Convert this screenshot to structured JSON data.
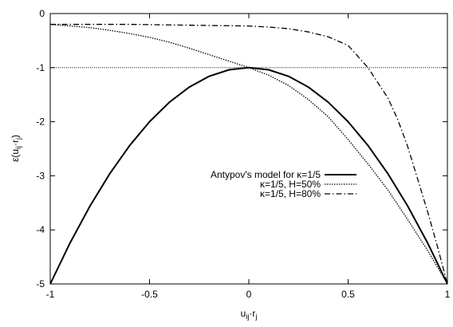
{
  "chart_data": {
    "type": "line",
    "xlim": [
      -1,
      1
    ],
    "ylim": [
      -5,
      0
    ],
    "xticks": [
      -1,
      -0.5,
      0,
      0.5,
      1
    ],
    "xtick_labels": [
      "-1",
      "-0.5",
      "0",
      "0.5",
      "1"
    ],
    "yticks": [
      0,
      -1,
      -2,
      -3,
      -4,
      -5
    ],
    "ytick_labels": [
      "0",
      "-1",
      "-2",
      "-3",
      "-4",
      "-5"
    ],
    "xlabel": {
      "main": "u",
      "sub": "ij",
      "dot": "·",
      "main2": "r",
      "sub2": "j"
    },
    "ylabel": {
      "pre": "ε(u",
      "sub": "ij",
      "mid": "·r",
      "sub2": "j",
      "post": ")"
    },
    "reference_line": {
      "y": -1,
      "style": "dotted"
    },
    "grid": false,
    "legend_position": "center-right",
    "series": [
      {
        "name": "Antypov's model for κ=1/5",
        "style": "solid",
        "x": [
          -1,
          -0.9,
          -0.8,
          -0.7,
          -0.6,
          -0.5,
          -0.4,
          -0.3,
          -0.2,
          -0.1,
          0,
          0.1,
          0.2,
          0.3,
          0.4,
          0.5,
          0.6,
          0.7,
          0.8,
          0.9,
          1
        ],
        "y": [
          -5,
          -4.24,
          -3.56,
          -2.96,
          -2.44,
          -2.0,
          -1.64,
          -1.36,
          -1.16,
          -1.04,
          -1.0,
          -1.04,
          -1.16,
          -1.36,
          -1.64,
          -2.0,
          -2.44,
          -2.96,
          -3.56,
          -4.24,
          -5
        ]
      },
      {
        "name": "κ=1/5, H=50%",
        "style": "dotted",
        "x": [
          -1,
          -0.9,
          -0.8,
          -0.7,
          -0.6,
          -0.5,
          -0.4,
          -0.3,
          -0.2,
          -0.1,
          0,
          0.1,
          0.2,
          0.3,
          0.4,
          0.5,
          0.6,
          0.7,
          0.8,
          0.9,
          1
        ],
        "y": [
          -0.2,
          -0.23,
          -0.26,
          -0.31,
          -0.37,
          -0.44,
          -0.53,
          -0.64,
          -0.76,
          -0.88,
          -1.0,
          -1.14,
          -1.33,
          -1.59,
          -1.91,
          -2.33,
          -2.78,
          -3.26,
          -3.81,
          -4.38,
          -5.0
        ]
      },
      {
        "name": "κ=1/5, H=80%",
        "style": "dashdot",
        "x": [
          -1,
          -0.8,
          -0.6,
          -0.4,
          -0.2,
          0,
          0.1,
          0.2,
          0.3,
          0.4,
          0.5,
          0.6,
          0.7,
          0.75,
          0.8,
          0.85,
          0.9,
          0.95,
          1
        ],
        "y": [
          -0.2,
          -0.2,
          -0.2,
          -0.21,
          -0.22,
          -0.23,
          -0.25,
          -0.28,
          -0.34,
          -0.43,
          -0.59,
          -1.0,
          -1.56,
          -1.96,
          -2.46,
          -3.06,
          -3.66,
          -4.31,
          -5.0
        ]
      }
    ]
  }
}
